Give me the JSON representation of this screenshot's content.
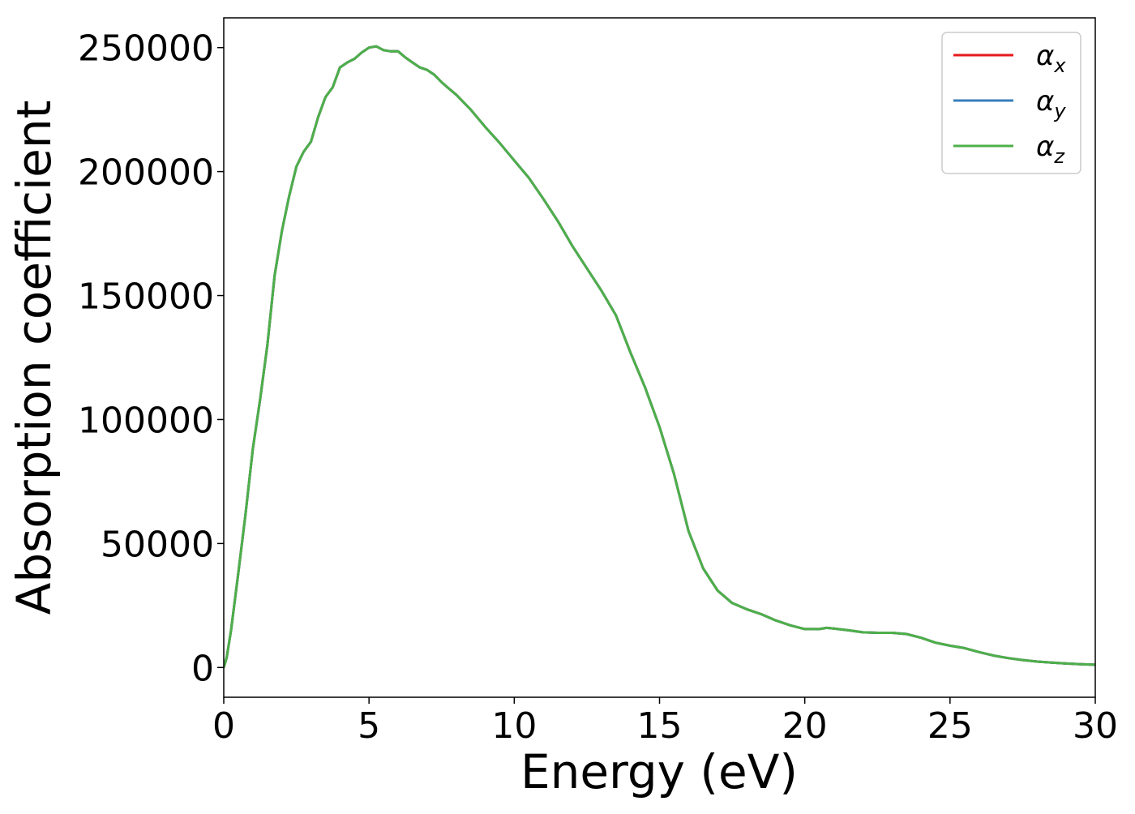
{
  "chart_data": {
    "type": "line",
    "title": "",
    "xlabel": "Energy (eV)",
    "ylabel": "Absorption coefficient",
    "xlim": [
      0,
      30
    ],
    "ylim": [
      -12000,
      262000
    ],
    "xticks": [
      0,
      5,
      10,
      15,
      20,
      25,
      30
    ],
    "yticks": [
      0,
      50000,
      100000,
      150000,
      200000,
      250000
    ],
    "grid": false,
    "legend": {
      "position": "top-right"
    },
    "x": [
      0,
      0.1,
      0.25,
      0.5,
      0.75,
      1.0,
      1.25,
      1.5,
      1.75,
      2.0,
      2.25,
      2.5,
      2.75,
      3.0,
      3.25,
      3.5,
      3.75,
      4.0,
      4.25,
      4.5,
      4.75,
      5.0,
      5.25,
      5.5,
      5.75,
      6.0,
      6.25,
      6.5,
      6.75,
      7.0,
      7.25,
      7.5,
      7.75,
      8.0,
      8.5,
      9.0,
      9.5,
      10.0,
      10.5,
      11.0,
      11.5,
      12.0,
      12.5,
      13.0,
      13.5,
      14.0,
      14.5,
      15.0,
      15.5,
      16.0,
      16.5,
      17.0,
      17.5,
      18.0,
      18.5,
      19.0,
      19.5,
      20.0,
      20.5,
      20.75,
      21.0,
      21.5,
      22.0,
      22.5,
      23.0,
      23.5,
      24.0,
      24.5,
      25.0,
      25.5,
      26.0,
      26.5,
      27.0,
      27.5,
      28.0,
      28.5,
      29.0,
      29.5,
      30.0
    ],
    "series": [
      {
        "name": "α",
        "subscript": "x",
        "color": "#e41a1c",
        "values": [
          0,
          4000,
          15000,
          38000,
          62000,
          88000,
          108000,
          130000,
          158000,
          176000,
          190000,
          202000,
          208000,
          212000,
          222000,
          230000,
          234000,
          242000,
          244000,
          245500,
          248000,
          250000,
          250500,
          249000,
          248500,
          248500,
          246000,
          244000,
          242000,
          241000,
          239000,
          236000,
          233500,
          231000,
          225000,
          218000,
          211500,
          204500,
          197500,
          189000,
          180000,
          170000,
          161000,
          152000,
          142000,
          127000,
          113000,
          97000,
          78000,
          55000,
          40000,
          31000,
          26000,
          23500,
          21500,
          19000,
          17000,
          15500,
          15500,
          16000,
          15700,
          15000,
          14200,
          14000,
          14000,
          13500,
          12000,
          10000,
          8800,
          7800,
          6200,
          4800,
          3800,
          3000,
          2400,
          2000,
          1600,
          1300,
          1100
        ]
      },
      {
        "name": "α",
        "subscript": "y",
        "color": "#377eb8",
        "values": [
          0,
          4000,
          15000,
          38000,
          62000,
          88000,
          108000,
          130000,
          158000,
          176000,
          190000,
          202000,
          208000,
          212000,
          222000,
          230000,
          234000,
          242000,
          244000,
          245500,
          248000,
          250000,
          250500,
          249000,
          248500,
          248500,
          246000,
          244000,
          242000,
          241000,
          239000,
          236000,
          233500,
          231000,
          225000,
          218000,
          211500,
          204500,
          197500,
          189000,
          180000,
          170000,
          161000,
          152000,
          142000,
          127000,
          113000,
          97000,
          78000,
          55000,
          40000,
          31000,
          26000,
          23500,
          21500,
          19000,
          17000,
          15500,
          15500,
          16000,
          15700,
          15000,
          14200,
          14000,
          14000,
          13500,
          12000,
          10000,
          8800,
          7800,
          6200,
          4800,
          3800,
          3000,
          2400,
          2000,
          1600,
          1300,
          1100
        ]
      },
      {
        "name": "α",
        "subscript": "z",
        "color": "#4daf4a",
        "values": [
          0,
          4000,
          15000,
          38000,
          62000,
          88000,
          108000,
          130000,
          158000,
          176000,
          190000,
          202000,
          208000,
          212000,
          222000,
          230000,
          234000,
          242000,
          244000,
          245500,
          248000,
          250000,
          250500,
          249000,
          248500,
          248500,
          246000,
          244000,
          242000,
          241000,
          239000,
          236000,
          233500,
          231000,
          225000,
          218000,
          211500,
          204500,
          197500,
          189000,
          180000,
          170000,
          161000,
          152000,
          142000,
          127000,
          113000,
          97000,
          78000,
          55000,
          40000,
          31000,
          26000,
          23500,
          21500,
          19000,
          17000,
          15500,
          15500,
          16000,
          15700,
          15000,
          14200,
          14000,
          14000,
          13500,
          12000,
          10000,
          8800,
          7800,
          6200,
          4800,
          3800,
          3000,
          2400,
          2000,
          1600,
          1300,
          1100
        ]
      }
    ]
  }
}
